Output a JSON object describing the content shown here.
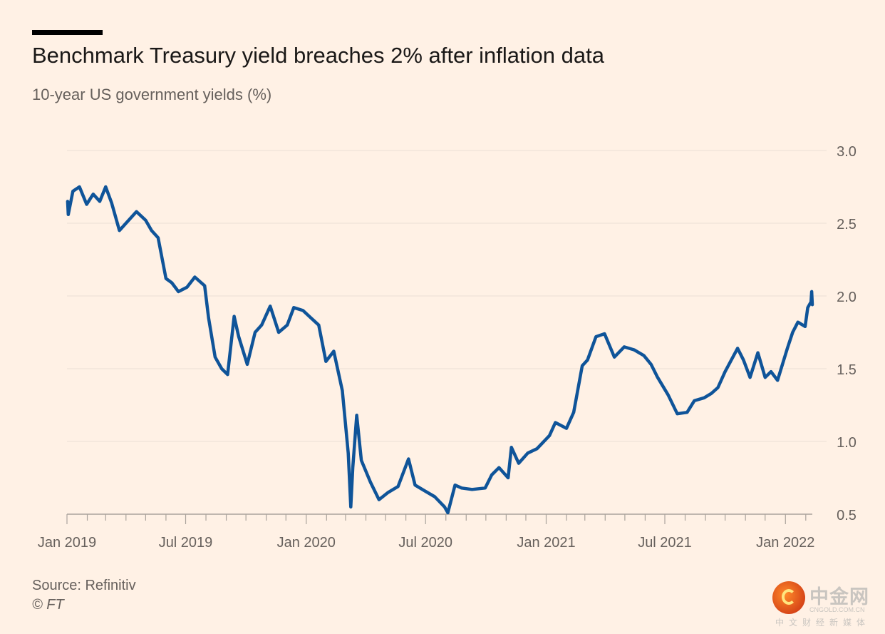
{
  "header": {
    "title": "Benchmark Treasury yield breaches 2% after inflation data",
    "subtitle": "10-year US government yields (%)"
  },
  "footer": {
    "source": "Source: Refinitiv",
    "copyright": "© FT"
  },
  "watermark": {
    "name": "中金网",
    "domain": "CNGOLD.COM.CN",
    "tagline": "中文财经新媒体"
  },
  "colors": {
    "background": "#fff1e5",
    "line": "#0f5499",
    "grid": "#ebdfd5",
    "axis": "#aaa39c",
    "text": "#66605c"
  },
  "chart_data": {
    "type": "line",
    "title": "Benchmark Treasury yield breaches 2% after inflation data",
    "subtitle": "10-year US government yields (%)",
    "xlabel": "",
    "ylabel": "",
    "ylim": [
      0.5,
      3.0
    ],
    "yticks": [
      0.5,
      1.0,
      1.5,
      2.0,
      2.5,
      3.0
    ],
    "ytick_labels": [
      "0.5",
      "1.0",
      "1.5",
      "2.0",
      "2.5",
      "3.0"
    ],
    "xtick_labels": [
      {
        "date": "2019-01-01",
        "label": "Jan 2019"
      },
      {
        "date": "2019-07-01",
        "label": "Jul 2019"
      },
      {
        "date": "2020-01-01",
        "label": "Jan 2020"
      },
      {
        "date": "2020-07-01",
        "label": "Jul 2020"
      },
      {
        "date": "2021-01-01",
        "label": "Jan 2021"
      },
      {
        "date": "2021-07-01",
        "label": "Jul 2021"
      },
      {
        "date": "2022-01-01",
        "label": "Jan 2022"
      }
    ],
    "x_range": [
      "2019-01-01",
      "2022-02-11"
    ],
    "grid": true,
    "legend": "none",
    "series": [
      {
        "x": [
          "2019-01-02",
          "2019-01-03",
          "2019-01-10",
          "2019-01-20",
          "2019-01-31",
          "2019-02-10",
          "2019-02-20",
          "2019-03-01",
          "2019-03-10",
          "2019-03-22",
          "2019-04-01",
          "2019-04-17",
          "2019-05-01",
          "2019-05-10",
          "2019-05-20",
          "2019-06-01",
          "2019-06-10",
          "2019-06-20",
          "2019-07-03",
          "2019-07-15",
          "2019-07-30",
          "2019-08-05",
          "2019-08-15",
          "2019-08-25",
          "2019-09-03",
          "2019-09-13",
          "2019-09-20",
          "2019-10-03",
          "2019-10-15",
          "2019-10-25",
          "2019-11-07",
          "2019-11-20",
          "2019-12-03",
          "2019-12-13",
          "2019-12-27",
          "2020-01-08",
          "2020-01-20",
          "2020-01-31",
          "2020-02-12",
          "2020-02-25",
          "2020-03-05",
          "2020-03-09",
          "2020-03-12",
          "2020-03-18",
          "2020-03-25",
          "2020-04-08",
          "2020-04-21",
          "2020-05-05",
          "2020-05-20",
          "2020-06-05",
          "2020-06-15",
          "2020-06-30",
          "2020-07-15",
          "2020-07-30",
          "2020-08-04",
          "2020-08-15",
          "2020-08-25",
          "2020-09-10",
          "2020-09-30",
          "2020-10-10",
          "2020-10-21",
          "2020-11-04",
          "2020-11-09",
          "2020-11-20",
          "2020-12-04",
          "2020-12-18",
          "2021-01-06",
          "2021-01-15",
          "2021-02-01",
          "2021-02-12",
          "2021-02-25",
          "2021-03-05",
          "2021-03-18",
          "2021-03-31",
          "2021-04-15",
          "2021-04-30",
          "2021-05-15",
          "2021-05-30",
          "2021-06-10",
          "2021-06-20",
          "2021-07-06",
          "2021-07-20",
          "2021-08-04",
          "2021-08-15",
          "2021-08-30",
          "2021-09-10",
          "2021-09-20",
          "2021-10-01",
          "2021-10-20",
          "2021-10-29",
          "2021-11-08",
          "2021-11-20",
          "2021-12-01",
          "2021-12-10",
          "2021-12-20",
          "2022-01-04",
          "2022-01-12",
          "2022-01-20",
          "2022-01-31",
          "2022-02-04",
          "2022-02-09",
          "2022-02-10",
          "2022-02-11"
        ],
        "y": [
          2.65,
          2.56,
          2.72,
          2.75,
          2.63,
          2.7,
          2.65,
          2.75,
          2.64,
          2.45,
          2.5,
          2.58,
          2.52,
          2.45,
          2.4,
          2.12,
          2.09,
          2.03,
          2.06,
          2.13,
          2.07,
          1.85,
          1.58,
          1.5,
          1.46,
          1.86,
          1.72,
          1.53,
          1.75,
          1.8,
          1.93,
          1.75,
          1.8,
          1.92,
          1.9,
          1.85,
          1.8,
          1.55,
          1.62,
          1.35,
          0.92,
          0.55,
          0.82,
          1.18,
          0.87,
          0.72,
          0.6,
          0.65,
          0.69,
          0.88,
          0.7,
          0.66,
          0.62,
          0.55,
          0.51,
          0.7,
          0.68,
          0.67,
          0.68,
          0.77,
          0.82,
          0.75,
          0.96,
          0.85,
          0.92,
          0.95,
          1.04,
          1.13,
          1.09,
          1.2,
          1.52,
          1.56,
          1.72,
          1.74,
          1.58,
          1.65,
          1.63,
          1.59,
          1.53,
          1.44,
          1.32,
          1.19,
          1.2,
          1.28,
          1.3,
          1.33,
          1.37,
          1.48,
          1.64,
          1.56,
          1.44,
          1.61,
          1.44,
          1.48,
          1.42,
          1.64,
          1.75,
          1.82,
          1.79,
          1.92,
          1.96,
          2.03,
          1.94
        ]
      }
    ]
  }
}
